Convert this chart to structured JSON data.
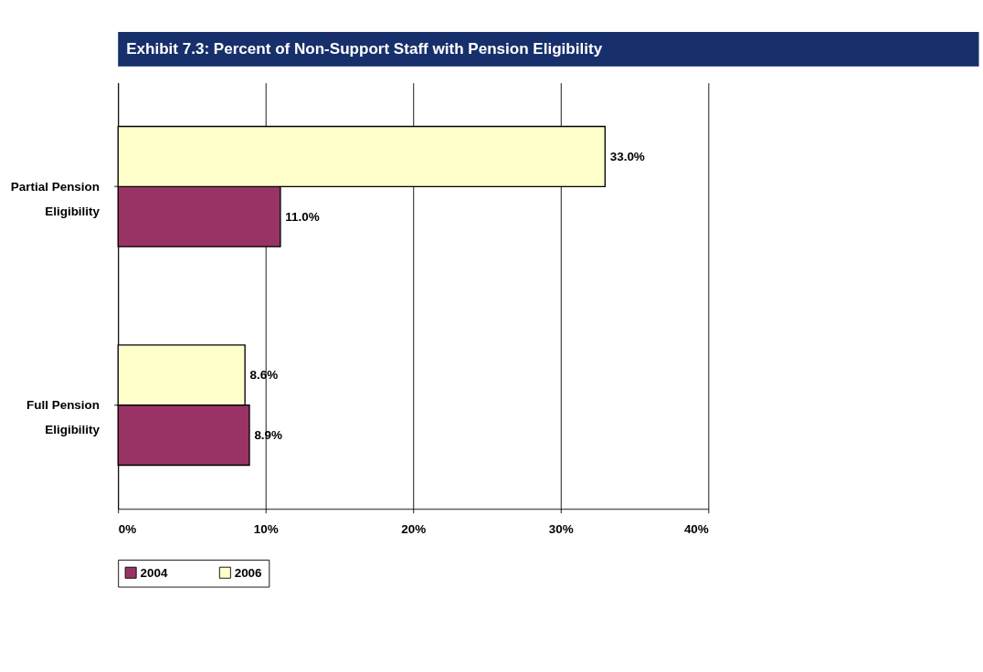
{
  "chart_data": {
    "type": "bar",
    "orientation": "horizontal",
    "title": "Exhibit 7.3:   Percent of Non-Support Staff with Pension Eligibility",
    "categories": [
      "Partial Pension Eligibility",
      "Full Pension Eligibility"
    ],
    "series": [
      {
        "name": "2004",
        "color": "#993366",
        "values": [
          11.0,
          8.9
        ],
        "value_labels": [
          "11.0%",
          "8.9%"
        ]
      },
      {
        "name": "2006",
        "color": "#ffffcc",
        "values": [
          33.0,
          8.6
        ],
        "value_labels": [
          "33.0%",
          "8.6%"
        ]
      }
    ],
    "xlim": [
      0,
      40
    ],
    "xticks": [
      {
        "value": 0,
        "label": "0%"
      },
      {
        "value": 10,
        "label": "10%"
      },
      {
        "value": 20,
        "label": "20%"
      },
      {
        "value": 30,
        "label": "30%"
      },
      {
        "value": 40,
        "label": "40%"
      }
    ],
    "grid": "x",
    "legend": "bottom"
  }
}
